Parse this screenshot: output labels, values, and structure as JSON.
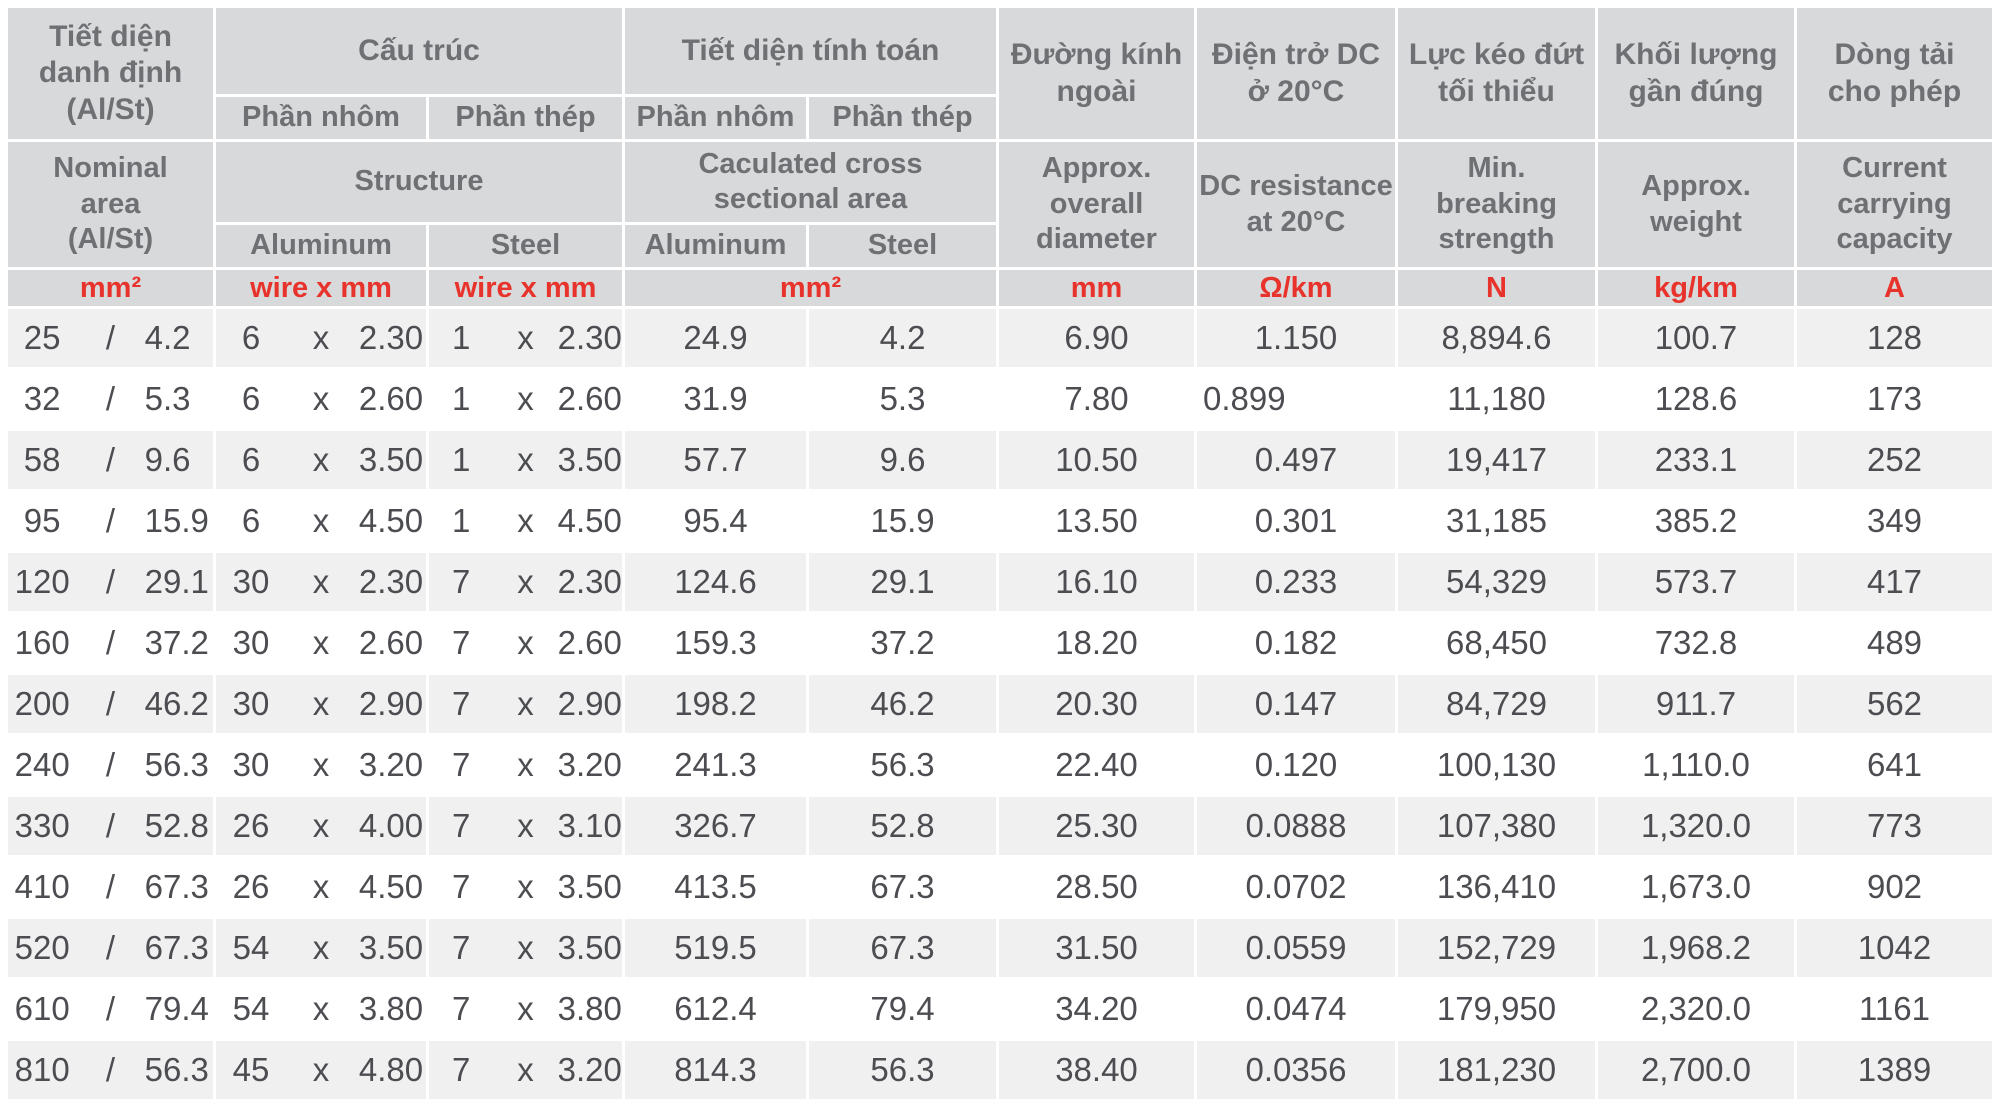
{
  "table": {
    "colors": {
      "header_bg": "#d8d9da",
      "header_text": "#6f7074",
      "unit_red": "#e8332c",
      "data_text": "#4c4d51",
      "row_odd_bg": "#f0f0f1",
      "row_even_bg": "#ffffff"
    },
    "headers": {
      "vi": {
        "nominal": "Tiết diện\ndanh định\n(Al/St)",
        "structure": "Cấu trúc",
        "structure_al": "Phần nhôm",
        "structure_st": "Phần thép",
        "calc": "Tiết diện tính toán",
        "calc_al": "Phần nhôm",
        "calc_st": "Phần thép",
        "diameter": "Đường kính\nngoài",
        "resistance": "Điện trở DC\nở 20°C",
        "strength": "Lực kéo đứt\ntối thiểu",
        "weight": "Khối lượng\ngần đúng",
        "current": "Dòng tải\ncho phép"
      },
      "en": {
        "nominal": "Nominal\narea\n(Al/St)",
        "structure": "Structure",
        "structure_al": "Aluminum",
        "structure_st": "Steel",
        "calc": "Caculated cross\nsectional area",
        "calc_al": "Aluminum",
        "calc_st": "Steel",
        "diameter": "Approx.\noverall\ndiameter",
        "resistance": "DC resistance\nat 20°C",
        "strength": "Min.\nbreaking\nstrength",
        "weight": "Approx.\nweight",
        "current": "Current\ncarrying\ncapacity"
      },
      "units": {
        "nominal": "mm²",
        "structure_al": "wire x mm",
        "structure_st": "wire x mm",
        "calc": "mm²",
        "diameter": "mm",
        "resistance": "Ω/km",
        "strength": "N",
        "weight": "kg/km",
        "current": "A"
      }
    },
    "rows": [
      {
        "nominal": [
          "25",
          "/",
          "4.2"
        ],
        "struct_al": [
          "6",
          "x",
          "2.30"
        ],
        "struct_st": [
          "1",
          "x",
          "2.30"
        ],
        "calc_al": "24.9",
        "calc_st": "4.2",
        "diameter": "6.90",
        "resistance": "1.150",
        "strength": "8,894.6",
        "weight": "100.7",
        "current": "128"
      },
      {
        "nominal": [
          "32",
          "/",
          "5.3"
        ],
        "struct_al": [
          "6",
          "x",
          "2.60"
        ],
        "struct_st": [
          "1",
          "x",
          "2.60"
        ],
        "calc_al": "31.9",
        "calc_st": "5.3",
        "diameter": "7.80",
        "resistance": "0.899",
        "resistance_align": "left",
        "strength": "11,180",
        "weight": "128.6",
        "current": "173"
      },
      {
        "nominal": [
          "58",
          "/",
          "9.6"
        ],
        "struct_al": [
          "6",
          "x",
          "3.50"
        ],
        "struct_st": [
          "1",
          "x",
          "3.50"
        ],
        "calc_al": "57.7",
        "calc_st": "9.6",
        "diameter": "10.50",
        "resistance": "0.497",
        "strength": "19,417",
        "weight": "233.1",
        "current": "252"
      },
      {
        "nominal": [
          "95",
          "/",
          "15.9"
        ],
        "struct_al": [
          "6",
          "x",
          "4.50"
        ],
        "struct_st": [
          "1",
          "x",
          "4.50"
        ],
        "calc_al": "95.4",
        "calc_st": "15.9",
        "diameter": "13.50",
        "resistance": "0.301",
        "strength": "31,185",
        "weight": "385.2",
        "current": "349"
      },
      {
        "nominal": [
          "120",
          "/",
          "29.1"
        ],
        "struct_al": [
          "30",
          "x",
          "2.30"
        ],
        "struct_st": [
          "7",
          "x",
          "2.30"
        ],
        "calc_al": "124.6",
        "calc_st": "29.1",
        "diameter": "16.10",
        "resistance": "0.233",
        "strength": "54,329",
        "weight": "573.7",
        "current": "417"
      },
      {
        "nominal": [
          "160",
          "/",
          "37.2"
        ],
        "struct_al": [
          "30",
          "x",
          "2.60"
        ],
        "struct_st": [
          "7",
          "x",
          "2.60"
        ],
        "calc_al": "159.3",
        "calc_st": "37.2",
        "diameter": "18.20",
        "resistance": "0.182",
        "strength": "68,450",
        "weight": "732.8",
        "current": "489"
      },
      {
        "nominal": [
          "200",
          "/",
          "46.2"
        ],
        "struct_al": [
          "30",
          "x",
          "2.90"
        ],
        "struct_st": [
          "7",
          "x",
          "2.90"
        ],
        "calc_al": "198.2",
        "calc_st": "46.2",
        "diameter": "20.30",
        "resistance": "0.147",
        "strength": "84,729",
        "weight": "911.7",
        "current": "562"
      },
      {
        "nominal": [
          "240",
          "/",
          "56.3"
        ],
        "struct_al": [
          "30",
          "x",
          "3.20"
        ],
        "struct_st": [
          "7",
          "x",
          "3.20"
        ],
        "calc_al": "241.3",
        "calc_st": "56.3",
        "diameter": "22.40",
        "resistance": "0.120",
        "strength": "100,130",
        "weight": "1,110.0",
        "current": "641"
      },
      {
        "nominal": [
          "330",
          "/",
          "52.8"
        ],
        "struct_al": [
          "26",
          "x",
          "4.00"
        ],
        "struct_st": [
          "7",
          "x",
          "3.10"
        ],
        "calc_al": "326.7",
        "calc_st": "52.8",
        "diameter": "25.30",
        "resistance": "0.0888",
        "strength": "107,380",
        "weight": "1,320.0",
        "current": "773"
      },
      {
        "nominal": [
          "410",
          "/",
          "67.3"
        ],
        "struct_al": [
          "26",
          "x",
          "4.50"
        ],
        "struct_st": [
          "7",
          "x",
          "3.50"
        ],
        "calc_al": "413.5",
        "calc_st": "67.3",
        "diameter": "28.50",
        "resistance": "0.0702",
        "strength": "136,410",
        "weight": "1,673.0",
        "current": "902"
      },
      {
        "nominal": [
          "520",
          "/",
          "67.3"
        ],
        "struct_al": [
          "54",
          "x",
          "3.50"
        ],
        "struct_st": [
          "7",
          "x",
          "3.50"
        ],
        "calc_al": "519.5",
        "calc_st": "67.3",
        "diameter": "31.50",
        "resistance": "0.0559",
        "strength": "152,729",
        "weight": "1,968.2",
        "current": "1042"
      },
      {
        "nominal": [
          "610",
          "/",
          "79.4"
        ],
        "struct_al": [
          "54",
          "x",
          "3.80"
        ],
        "struct_st": [
          "7",
          "x",
          "3.80"
        ],
        "calc_al": "612.4",
        "calc_st": "79.4",
        "diameter": "34.20",
        "resistance": "0.0474",
        "strength": "179,950",
        "weight": "2,320.0",
        "current": "1161"
      },
      {
        "nominal": [
          "810",
          "/",
          "56.3"
        ],
        "struct_al": [
          "45",
          "x",
          "4.80"
        ],
        "struct_st": [
          "7",
          "x",
          "3.20"
        ],
        "calc_al": "814.3",
        "calc_st": "56.3",
        "diameter": "38.40",
        "resistance": "0.0356",
        "strength": "181,230",
        "weight": "2,700.0",
        "current": "1389"
      }
    ]
  }
}
